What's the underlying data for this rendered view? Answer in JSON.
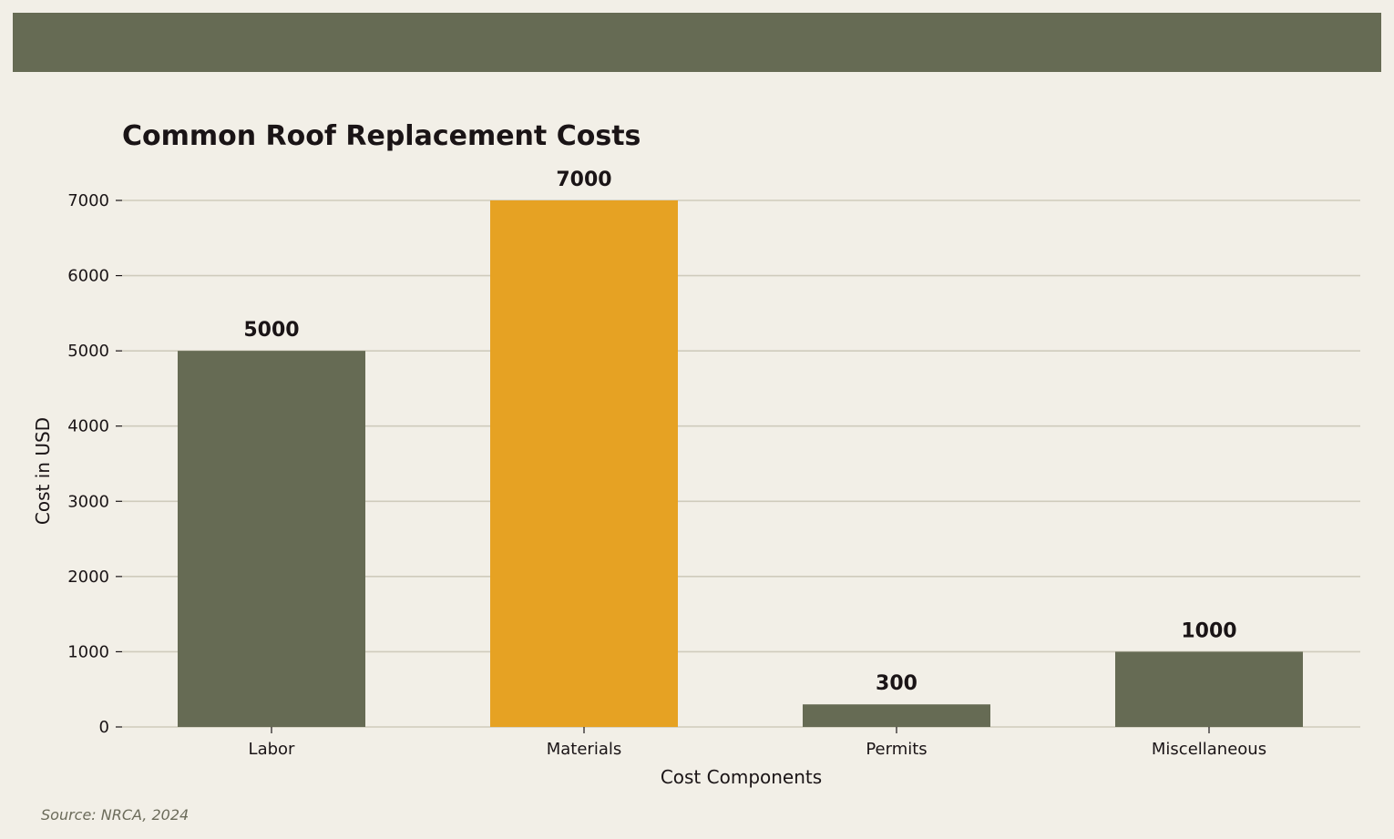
{
  "colors": {
    "background": "#f2efe7",
    "band": "#666b54",
    "bar_default": "#666b54",
    "bar_highlight": "#e6a223",
    "grid": "#cfcbbc",
    "text": "#1a1416",
    "source_text": "#6b6b5a"
  },
  "source": "Source: NRCA, 2024",
  "chart_data": {
    "type": "bar",
    "title": "Common Roof Replacement Costs",
    "xlabel": "Cost Components",
    "ylabel": "Cost in USD",
    "categories": [
      "Labor",
      "Materials",
      "Permits",
      "Miscellaneous"
    ],
    "values": [
      5000,
      7000,
      300,
      1000
    ],
    "highlight": "Materials",
    "ylim": [
      0,
      7000
    ],
    "yticks": [
      0,
      1000,
      2000,
      3000,
      4000,
      5000,
      6000,
      7000
    ],
    "grid": "horizontal",
    "data_labels": true
  }
}
